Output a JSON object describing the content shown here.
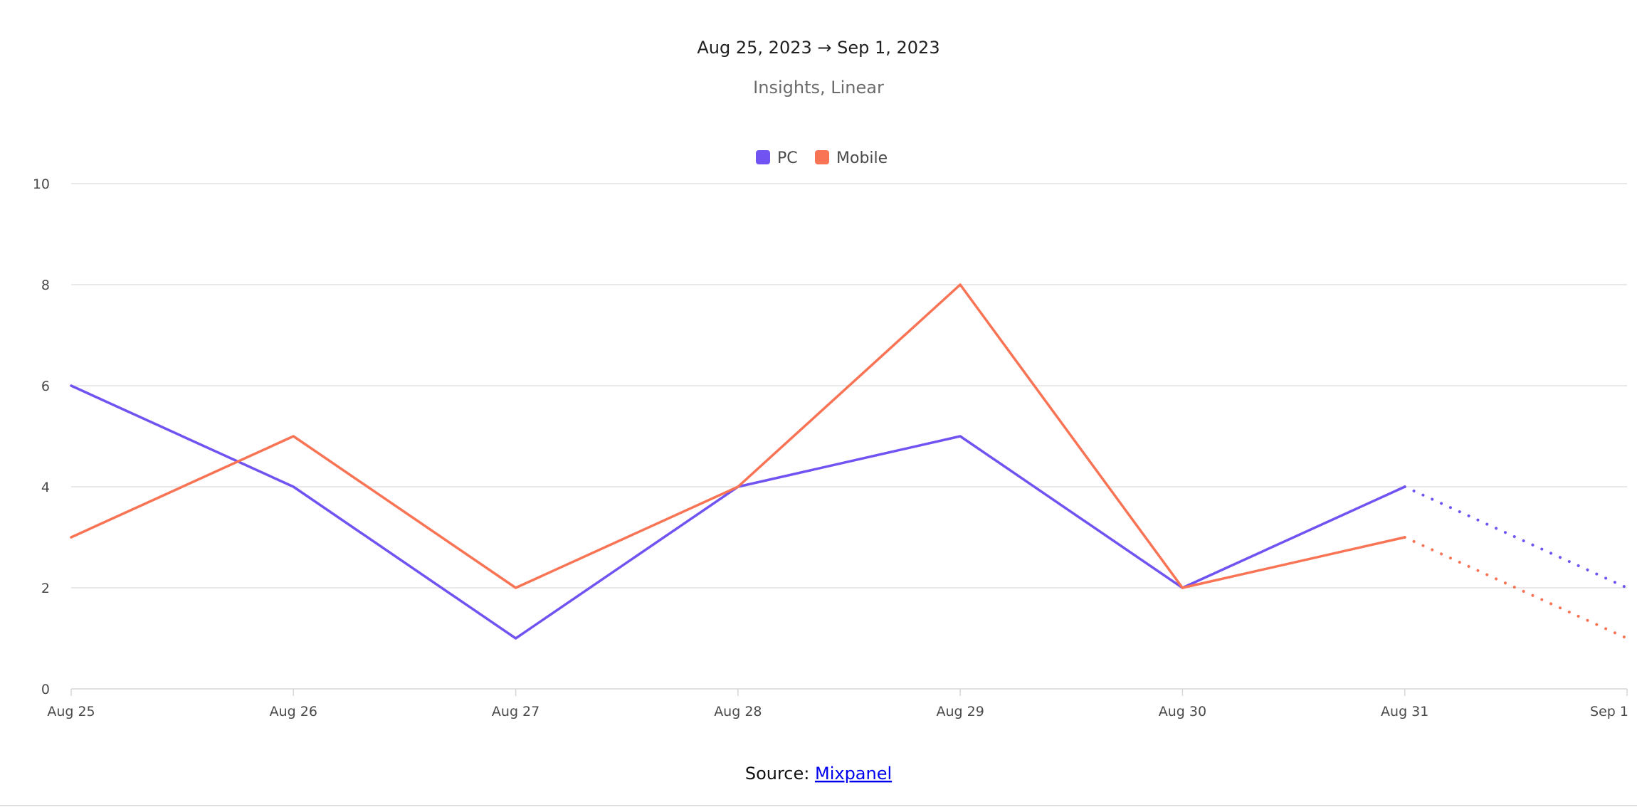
{
  "chart_data": {
    "type": "line",
    "title": "Aug 25, 2023 → Sep 1, 2023",
    "subtitle": "Insights, Linear",
    "categories": [
      "Aug 25",
      "Aug 26",
      "Aug 27",
      "Aug 28",
      "Aug 29",
      "Aug 30",
      "Aug 31",
      "Sep 1"
    ],
    "xlabel": "",
    "ylabel": "",
    "ylim": [
      0,
      10
    ],
    "yticks": [
      0,
      2,
      4,
      6,
      8,
      10
    ],
    "grid": true,
    "legend_position": "top-center",
    "series": [
      {
        "name": "PC",
        "color": "#7153F2",
        "values": [
          6,
          4,
          1,
          4,
          5,
          2,
          4,
          2
        ],
        "projected_from_index": 6
      },
      {
        "name": "Mobile",
        "color": "#F87455",
        "values": [
          3,
          5,
          2,
          4,
          8,
          2,
          3,
          1
        ],
        "projected_from_index": 6
      }
    ]
  },
  "source": {
    "prefix": "Source: ",
    "link_text": "Mixpanel"
  }
}
